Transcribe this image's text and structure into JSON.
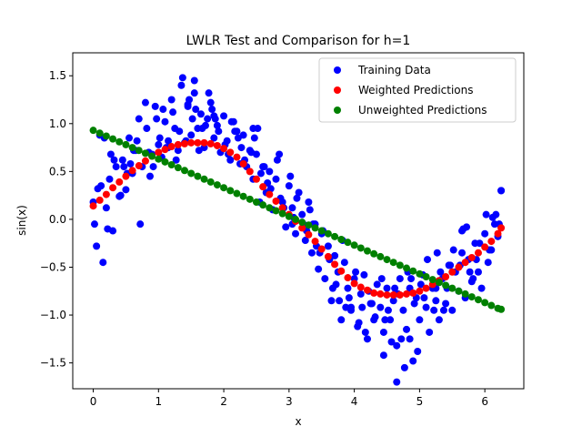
{
  "chart_data": {
    "type": "scatter",
    "title": "LWLR Test and Comparison for h=1",
    "xlabel": "x",
    "ylabel": "sin(x)",
    "xlim": [
      -0.314,
      6.597
    ],
    "ylim": [
      -1.77,
      1.74
    ],
    "xticks": [
      {
        "value": 0,
        "label": "0"
      },
      {
        "value": 1,
        "label": "1"
      },
      {
        "value": 2,
        "label": "2"
      },
      {
        "value": 3,
        "label": "3"
      },
      {
        "value": 4,
        "label": "4"
      },
      {
        "value": 5,
        "label": "5"
      },
      {
        "value": 6,
        "label": "6"
      }
    ],
    "yticks": [
      {
        "value": 1.5,
        "label": "1.5"
      },
      {
        "value": 1.0,
        "label": "1.0"
      },
      {
        "value": 0.5,
        "label": "0.5"
      },
      {
        "value": 0.0,
        "label": "0.0"
      },
      {
        "value": -0.5,
        "label": "−0.5"
      },
      {
        "value": -1.0,
        "label": "−1.0"
      },
      {
        "value": -1.5,
        "label": "−1.5"
      }
    ],
    "grid": false,
    "legend_position": "top-right",
    "series": [
      {
        "name": "Training Data",
        "color": "#0000ff",
        "x": [
          0.0,
          0.05,
          0.1,
          0.15,
          0.2,
          0.25,
          0.3,
          0.35,
          0.4,
          0.45,
          0.5,
          0.55,
          0.6,
          0.65,
          0.7,
          0.75,
          0.8,
          0.85,
          0.9,
          0.95,
          1.0,
          1.05,
          1.1,
          1.15,
          1.2,
          1.25,
          1.3,
          1.35,
          1.4,
          1.45,
          1.5,
          1.55,
          1.6,
          1.65,
          1.7,
          1.75,
          1.8,
          1.85,
          1.9,
          1.95,
          2.0,
          2.05,
          2.1,
          2.15,
          2.2,
          2.25,
          2.3,
          2.35,
          2.4,
          2.45,
          2.5,
          2.55,
          2.6,
          2.65,
          2.7,
          2.75,
          2.8,
          2.85,
          2.9,
          2.95,
          3.0,
          3.05,
          3.1,
          3.15,
          3.2,
          3.25,
          3.3,
          3.35,
          3.4,
          3.45,
          3.5,
          3.55,
          3.6,
          3.65,
          3.7,
          3.75,
          3.8,
          3.85,
          3.9,
          3.95,
          4.0,
          4.05,
          4.1,
          4.15,
          4.2,
          4.25,
          4.3,
          4.35,
          4.4,
          4.45,
          4.5,
          4.55,
          4.6,
          4.65,
          4.7,
          4.75,
          4.8,
          4.85,
          4.9,
          4.95,
          5.0,
          5.05,
          5.1,
          5.15,
          5.2,
          5.25,
          5.3,
          5.35,
          5.4,
          5.45,
          5.5,
          5.55,
          5.6,
          5.65,
          5.7,
          5.75,
          5.8,
          5.85,
          5.9,
          5.95,
          6.0,
          6.05,
          6.1,
          6.15,
          6.2,
          6.25,
          0.02,
          0.12,
          0.22,
          0.32,
          0.42,
          0.52,
          0.62,
          0.72,
          0.82,
          0.92,
          1.02,
          1.12,
          1.22,
          1.32,
          1.42,
          1.52,
          1.62,
          1.72,
          1.82,
          1.92,
          2.02,
          2.12,
          2.22,
          2.32,
          2.42,
          2.52,
          2.62,
          2.72,
          2.82,
          2.92,
          3.02,
          3.12,
          3.22,
          3.32,
          3.42,
          3.52,
          3.62,
          3.72,
          3.82,
          3.92,
          4.02,
          4.12,
          4.22,
          4.32,
          4.42,
          4.52,
          4.62,
          4.72,
          4.82,
          4.92,
          5.02,
          5.12,
          5.22,
          5.32,
          5.42,
          5.52,
          5.62,
          5.72,
          5.82,
          5.92,
          6.02,
          6.12,
          6.22,
          0.07,
          0.27,
          0.47,
          0.67,
          0.87,
          1.07,
          1.27,
          1.47,
          1.67,
          1.87,
          2.07,
          2.27,
          2.47,
          2.67,
          2.87,
          3.07,
          3.27,
          3.47,
          3.67,
          3.87,
          4.07,
          4.27,
          4.47,
          4.67,
          4.87,
          5.07,
          5.27,
          5.47,
          5.67,
          5.87,
          6.07,
          0.17,
          0.57,
          0.97,
          1.37,
          1.57,
          1.77,
          2.17,
          2.57,
          3.37,
          3.77,
          4.17,
          4.57,
          4.77,
          4.97,
          5.37,
          5.77,
          6.17,
          1.15,
          1.45,
          1.55,
          1.85,
          2.45,
          3.05,
          3.95,
          4.45,
          4.65,
          4.85,
          5.25,
          5.65,
          6.25
        ],
        "y": [
          0.18,
          -0.28,
          0.88,
          -0.45,
          0.12,
          0.42,
          -0.12,
          0.55,
          0.24,
          0.62,
          0.31,
          0.85,
          0.48,
          0.72,
          1.05,
          0.55,
          1.22,
          0.7,
          0.68,
          1.18,
          0.78,
          0.65,
          1.02,
          0.82,
          1.25,
          0.95,
          0.72,
          1.4,
          0.8,
          1.18,
          0.88,
          1.32,
          0.95,
          1.1,
          0.75,
          1.05,
          1.22,
          0.85,
          0.98,
          0.7,
          1.08,
          0.82,
          0.62,
          1.02,
          0.92,
          0.58,
          0.88,
          0.55,
          0.72,
          0.42,
          0.68,
          0.18,
          0.55,
          0.28,
          0.5,
          0.1,
          0.42,
          0.68,
          0.18,
          -0.08,
          0.35,
          0.12,
          -0.15,
          0.28,
          0.05,
          -0.22,
          0.18,
          -0.35,
          -0.05,
          -0.52,
          -0.15,
          -0.62,
          -0.28,
          -0.85,
          -0.38,
          -0.55,
          -1.05,
          -0.45,
          -0.72,
          -0.95,
          -0.62,
          -1.12,
          -0.78,
          -0.58,
          -1.25,
          -0.88,
          -1.05,
          -0.68,
          -0.92,
          -1.18,
          -0.72,
          -1.05,
          -0.85,
          -1.32,
          -0.62,
          -0.95,
          -1.15,
          -0.72,
          -1.48,
          -0.82,
          -1.05,
          -0.58,
          -0.92,
          -1.18,
          -0.72,
          -0.85,
          -1.05,
          -0.62,
          -0.88,
          -0.48,
          -0.95,
          -0.55,
          -0.75,
          -0.35,
          -0.82,
          -0.42,
          -0.65,
          -0.25,
          -0.55,
          -0.72,
          -0.15,
          -0.45,
          -0.32,
          -0.05,
          -0.18,
          0.3,
          -0.05,
          0.35,
          -0.1,
          0.62,
          0.25,
          0.48,
          0.72,
          -0.05,
          0.95,
          0.55,
          0.85,
          0.75,
          1.12,
          0.92,
          0.82,
          1.05,
          0.72,
          0.98,
          1.15,
          0.92,
          0.78,
          1.02,
          0.85,
          0.62,
          0.7,
          0.95,
          0.55,
          0.32,
          0.62,
          0.12,
          0.45,
          0.22,
          -0.05,
          0.1,
          -0.28,
          -0.12,
          -0.42,
          -0.68,
          -0.22,
          -0.82,
          -0.55,
          -0.92,
          -0.75,
          -1.02,
          -0.62,
          -0.95,
          -0.72,
          -1.25,
          -0.55,
          -0.88,
          -0.68,
          -0.42,
          -0.95,
          -0.55,
          -0.72,
          -0.32,
          -0.48,
          -0.08,
          -0.62,
          -0.25,
          0.05,
          0.02,
          -0.05,
          0.32,
          0.68,
          0.55,
          0.82,
          0.45,
          1.15,
          0.62,
          1.25,
          0.95,
          1.05,
          0.68,
          0.75,
          0.85,
          0.38,
          0.22,
          0.02,
          -0.12,
          -0.35,
          -0.72,
          -0.92,
          -1.08,
          -0.88,
          -1.05,
          -0.78,
          -0.62,
          -0.82,
          -0.35,
          -0.48,
          -0.1,
          -0.42,
          -0.32,
          0.85,
          0.58,
          1.05,
          1.48,
          1.15,
          1.32,
          0.92,
          0.48,
          -0.05,
          -0.85,
          -1.18,
          -1.28,
          -1.55,
          -1.38,
          -0.95,
          -0.55,
          0.05,
          0.75,
          1.2,
          1.45,
          1.08,
          0.95,
          -0.05,
          -0.92,
          -1.42,
          -1.7,
          -1.25,
          -0.72,
          -0.12,
          0.3
        ]
      },
      {
        "name": "Weighted Predictions",
        "color": "#ff0000",
        "x": [
          0.0,
          0.1,
          0.2,
          0.3,
          0.4,
          0.5,
          0.6,
          0.7,
          0.8,
          0.9,
          1.0,
          1.1,
          1.2,
          1.3,
          1.4,
          1.5,
          1.6,
          1.7,
          1.8,
          1.9,
          2.0,
          2.1,
          2.2,
          2.3,
          2.4,
          2.5,
          2.6,
          2.7,
          2.8,
          2.9,
          3.0,
          3.1,
          3.2,
          3.3,
          3.4,
          3.5,
          3.6,
          3.7,
          3.8,
          3.9,
          4.0,
          4.1,
          4.2,
          4.3,
          4.4,
          4.5,
          4.6,
          4.7,
          4.8,
          4.9,
          5.0,
          5.1,
          5.2,
          5.3,
          5.4,
          5.5,
          5.6,
          5.7,
          5.8,
          5.9,
          6.0,
          6.1,
          6.2,
          6.25
        ],
        "y": [
          0.14,
          0.2,
          0.26,
          0.33,
          0.39,
          0.45,
          0.51,
          0.56,
          0.61,
          0.66,
          0.7,
          0.73,
          0.76,
          0.78,
          0.79,
          0.8,
          0.8,
          0.8,
          0.79,
          0.77,
          0.74,
          0.7,
          0.65,
          0.58,
          0.5,
          0.42,
          0.34,
          0.26,
          0.19,
          0.12,
          0.05,
          -0.02,
          -0.09,
          -0.16,
          -0.23,
          -0.31,
          -0.39,
          -0.47,
          -0.54,
          -0.61,
          -0.67,
          -0.71,
          -0.74,
          -0.77,
          -0.78,
          -0.79,
          -0.79,
          -0.79,
          -0.78,
          -0.77,
          -0.75,
          -0.72,
          -0.68,
          -0.64,
          -0.6,
          -0.55,
          -0.5,
          -0.45,
          -0.4,
          -0.35,
          -0.29,
          -0.23,
          -0.15,
          -0.09
        ]
      },
      {
        "name": "Unweighted Predictions",
        "color": "#008000",
        "x": [
          0.0,
          0.1,
          0.2,
          0.3,
          0.4,
          0.5,
          0.6,
          0.7,
          0.8,
          0.9,
          1.0,
          1.1,
          1.2,
          1.3,
          1.4,
          1.5,
          1.6,
          1.7,
          1.8,
          1.9,
          2.0,
          2.1,
          2.2,
          2.3,
          2.4,
          2.5,
          2.6,
          2.7,
          2.8,
          2.9,
          3.0,
          3.1,
          3.2,
          3.3,
          3.4,
          3.5,
          3.6,
          3.7,
          3.8,
          3.9,
          4.0,
          4.1,
          4.2,
          4.3,
          4.4,
          4.5,
          4.6,
          4.7,
          4.8,
          4.9,
          5.0,
          5.1,
          5.2,
          5.3,
          5.4,
          5.5,
          5.6,
          5.7,
          5.8,
          5.9,
          6.0,
          6.1,
          6.2,
          6.25
        ],
        "y": [
          0.93,
          0.9,
          0.87,
          0.84,
          0.81,
          0.78,
          0.75,
          0.72,
          0.69,
          0.66,
          0.63,
          0.6,
          0.57,
          0.54,
          0.51,
          0.48,
          0.45,
          0.42,
          0.39,
          0.36,
          0.33,
          0.3,
          0.27,
          0.24,
          0.21,
          0.18,
          0.15,
          0.12,
          0.09,
          0.06,
          0.03,
          0.0,
          -0.03,
          -0.06,
          -0.09,
          -0.12,
          -0.15,
          -0.18,
          -0.21,
          -0.24,
          -0.27,
          -0.3,
          -0.33,
          -0.36,
          -0.39,
          -0.42,
          -0.45,
          -0.48,
          -0.51,
          -0.54,
          -0.57,
          -0.6,
          -0.63,
          -0.66,
          -0.69,
          -0.72,
          -0.75,
          -0.78,
          -0.81,
          -0.84,
          -0.87,
          -0.9,
          -0.93,
          -0.94
        ]
      }
    ]
  }
}
